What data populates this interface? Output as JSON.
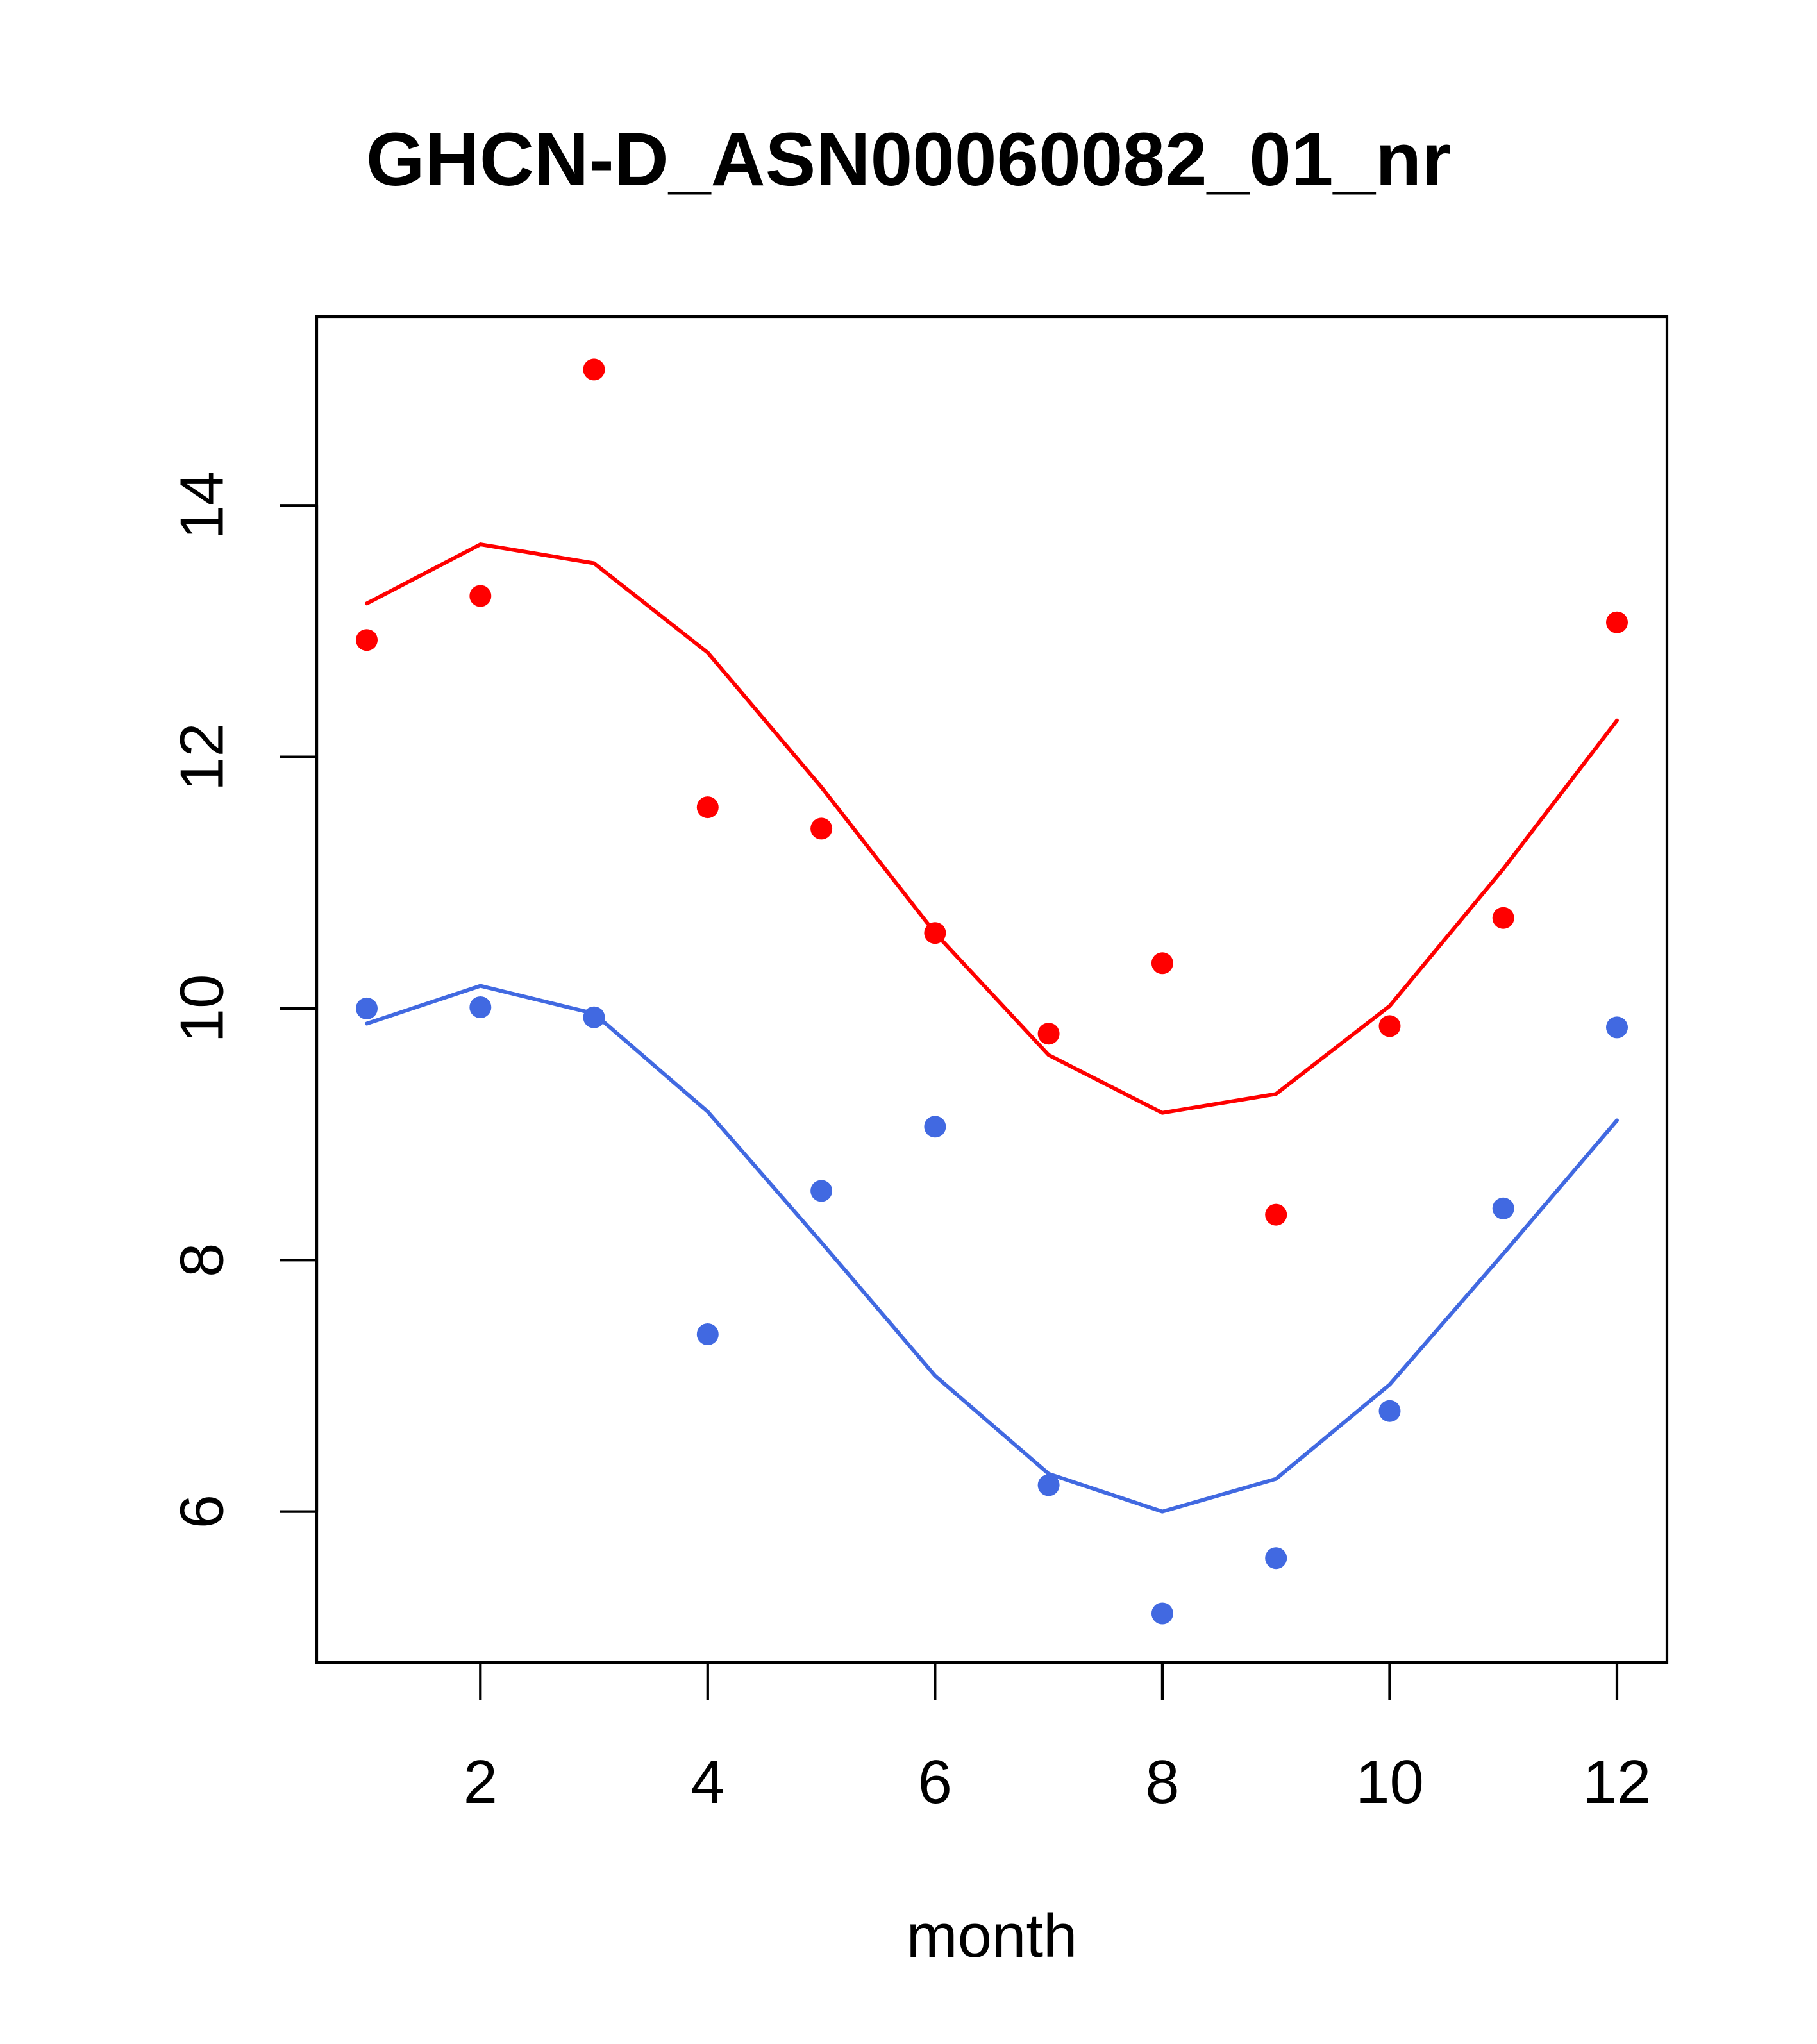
{
  "chart_data": {
    "type": "scatter",
    "title": "GHCN-D_ASN00060082_01_nr",
    "xlabel": "month",
    "ylabel": "",
    "xlim": [
      0.56,
      12.44
    ],
    "ylim": [
      4.8,
      15.5
    ],
    "x_ticks": [
      2,
      4,
      6,
      8,
      10,
      12
    ],
    "y_ticks": [
      6,
      8,
      10,
      12,
      14
    ],
    "grid": false,
    "legend": "none",
    "x": [
      1,
      2,
      3,
      4,
      5,
      6,
      7,
      8,
      9,
      10,
      11,
      12
    ],
    "series": [
      {
        "color": "#ff0000",
        "points": [
          12.93,
          13.28,
          15.08,
          11.6,
          11.43,
          10.6,
          9.8,
          10.36,
          8.36,
          9.86,
          10.72,
          13.07
        ],
        "line": [
          13.22,
          13.69,
          13.54,
          12.83,
          11.76,
          10.6,
          9.63,
          9.17,
          9.32,
          10.02,
          11.11,
          12.29
        ]
      },
      {
        "color": "#4169e1",
        "points": [
          10.0,
          10.01,
          9.93,
          7.41,
          8.55,
          9.06,
          6.21,
          5.19,
          5.63,
          6.8,
          8.41,
          9.85
        ],
        "line": [
          9.88,
          10.18,
          9.96,
          9.18,
          8.14,
          7.08,
          6.3,
          6.0,
          6.26,
          7.01,
          8.05,
          9.11
        ]
      }
    ]
  }
}
